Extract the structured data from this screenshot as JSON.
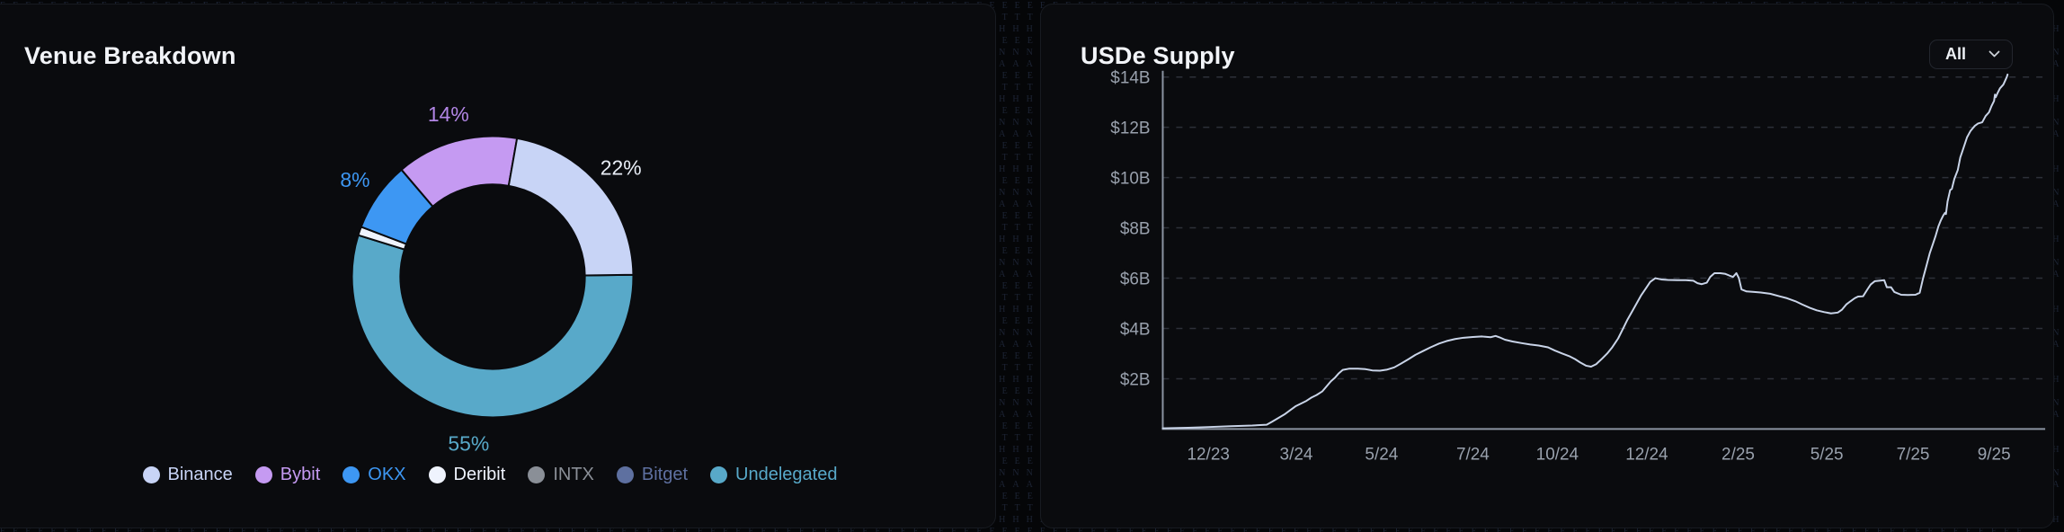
{
  "background": {
    "pattern_word": "ETHENA"
  },
  "cards": {
    "venue": {
      "title": "Venue Breakdown"
    },
    "supply": {
      "title": "USDe Supply",
      "range_selector": {
        "selected": "All",
        "icon": "chevron-down-icon"
      }
    }
  },
  "chart_data": [
    {
      "type": "donut",
      "title": "Venue Breakdown",
      "unit": "%",
      "slices": [
        {
          "label": "Binance",
          "pct": 22,
          "color": "#c8d4f6",
          "pct_label_color": "#e9eef7"
        },
        {
          "label": "Bybit",
          "pct": 14,
          "color": "#c59af2",
          "pct_label_color": "#b286e5"
        },
        {
          "label": "OKX",
          "pct": 8,
          "color": "#3d97f3",
          "pct_label_color": "#3d97f3"
        },
        {
          "label": "Deribit",
          "pct": 1,
          "color": "#eff3fd",
          "pct_label_color": "#eff3fd"
        },
        {
          "label": "INTX",
          "pct": 0,
          "color": "#8a8f97",
          "pct_label_color": "#8a8f97"
        },
        {
          "label": "Bitget",
          "pct": 0,
          "color": "#5e70a0",
          "pct_label_color": "#5e70a0"
        },
        {
          "label": "Undelegated",
          "pct": 55,
          "color": "#58a9c9",
          "pct_label_color": "#58a9c9"
        }
      ],
      "start_angle_deg": 10,
      "direction": "counterclockwise",
      "inner_radius_ratio": 0.655,
      "legend_position": "bottom",
      "pct_label_min": 5
    },
    {
      "type": "line",
      "title": "USDe Supply",
      "ylim": [
        0,
        14.3
      ],
      "grid": "dashed-horizontal",
      "legend_position": "none",
      "line_color": "#c9d4e8",
      "axis_color": "#8b93a1",
      "tick_label_color": "#99a1ad",
      "y_ticks": [
        {
          "label": "$2B",
          "value": 2
        },
        {
          "label": "$4B",
          "value": 4
        },
        {
          "label": "$6B",
          "value": 6
        },
        {
          "label": "$8B",
          "value": 8
        },
        {
          "label": "$10B",
          "value": 10
        },
        {
          "label": "$12B",
          "value": 12
        },
        {
          "label": "$14B",
          "value": 14
        }
      ],
      "x_ticks": [
        {
          "label": "12/23",
          "f": 0.054
        },
        {
          "label": "3/24",
          "f": 0.158
        },
        {
          "label": "5/24",
          "f": 0.259
        },
        {
          "label": "7/24",
          "f": 0.367
        },
        {
          "label": "10/24",
          "f": 0.467
        },
        {
          "label": "12/24",
          "f": 0.573
        },
        {
          "label": "2/25",
          "f": 0.681
        },
        {
          "label": "5/25",
          "f": 0.786
        },
        {
          "label": "7/25",
          "f": 0.888
        },
        {
          "label": "9/25",
          "f": 0.984
        }
      ],
      "points": [
        [
          0.0,
          0.03
        ],
        [
          0.03,
          0.05
        ],
        [
          0.054,
          0.08
        ],
        [
          0.081,
          0.11
        ],
        [
          0.106,
          0.14
        ],
        [
          0.123,
          0.17
        ],
        [
          0.129,
          0.28
        ],
        [
          0.136,
          0.42
        ],
        [
          0.144,
          0.58
        ],
        [
          0.151,
          0.75
        ],
        [
          0.157,
          0.9
        ],
        [
          0.163,
          1.0
        ],
        [
          0.17,
          1.12
        ],
        [
          0.176,
          1.25
        ],
        [
          0.182,
          1.35
        ],
        [
          0.189,
          1.5
        ],
        [
          0.194,
          1.7
        ],
        [
          0.199,
          1.9
        ],
        [
          0.204,
          2.05
        ],
        [
          0.208,
          2.2
        ],
        [
          0.213,
          2.35
        ],
        [
          0.221,
          2.4
        ],
        [
          0.231,
          2.4
        ],
        [
          0.24,
          2.38
        ],
        [
          0.248,
          2.33
        ],
        [
          0.257,
          2.32
        ],
        [
          0.265,
          2.36
        ],
        [
          0.274,
          2.45
        ],
        [
          0.282,
          2.6
        ],
        [
          0.291,
          2.78
        ],
        [
          0.299,
          2.95
        ],
        [
          0.308,
          3.1
        ],
        [
          0.317,
          3.25
        ],
        [
          0.327,
          3.4
        ],
        [
          0.336,
          3.5
        ],
        [
          0.346,
          3.58
        ],
        [
          0.356,
          3.63
        ],
        [
          0.367,
          3.66
        ],
        [
          0.378,
          3.68
        ],
        [
          0.388,
          3.65
        ],
        [
          0.394,
          3.7
        ],
        [
          0.399,
          3.64
        ],
        [
          0.405,
          3.55
        ],
        [
          0.414,
          3.48
        ],
        [
          0.424,
          3.42
        ],
        [
          0.435,
          3.36
        ],
        [
          0.445,
          3.32
        ],
        [
          0.456,
          3.25
        ],
        [
          0.464,
          3.12
        ],
        [
          0.473,
          3.0
        ],
        [
          0.481,
          2.9
        ],
        [
          0.488,
          2.78
        ],
        [
          0.494,
          2.65
        ],
        [
          0.501,
          2.52
        ],
        [
          0.507,
          2.48
        ],
        [
          0.513,
          2.58
        ],
        [
          0.52,
          2.8
        ],
        [
          0.526,
          3.0
        ],
        [
          0.532,
          3.25
        ],
        [
          0.539,
          3.6
        ],
        [
          0.545,
          4.0
        ],
        [
          0.55,
          4.35
        ],
        [
          0.556,
          4.7
        ],
        [
          0.561,
          5.0
        ],
        [
          0.566,
          5.3
        ],
        [
          0.572,
          5.6
        ],
        [
          0.577,
          5.85
        ],
        [
          0.583,
          6.0
        ],
        [
          0.59,
          5.95
        ],
        [
          0.598,
          5.93
        ],
        [
          0.609,
          5.92
        ],
        [
          0.619,
          5.92
        ],
        [
          0.628,
          5.9
        ],
        [
          0.633,
          5.8
        ],
        [
          0.638,
          5.76
        ],
        [
          0.644,
          5.82
        ],
        [
          0.648,
          6.05
        ],
        [
          0.653,
          6.2
        ],
        [
          0.66,
          6.2
        ],
        [
          0.666,
          6.17
        ],
        [
          0.671,
          6.1
        ],
        [
          0.675,
          6.05
        ],
        [
          0.679,
          6.2
        ],
        [
          0.682,
          6.0
        ],
        [
          0.685,
          5.55
        ],
        [
          0.691,
          5.47
        ],
        [
          0.7,
          5.45
        ],
        [
          0.708,
          5.43
        ],
        [
          0.719,
          5.38
        ],
        [
          0.73,
          5.28
        ],
        [
          0.739,
          5.2
        ],
        [
          0.749,
          5.08
        ],
        [
          0.757,
          4.95
        ],
        [
          0.766,
          4.82
        ],
        [
          0.774,
          4.72
        ],
        [
          0.783,
          4.65
        ],
        [
          0.791,
          4.6
        ],
        [
          0.799,
          4.63
        ],
        [
          0.804,
          4.75
        ],
        [
          0.809,
          4.95
        ],
        [
          0.814,
          5.08
        ],
        [
          0.819,
          5.2
        ],
        [
          0.823,
          5.27
        ],
        [
          0.829,
          5.28
        ],
        [
          0.834,
          5.55
        ],
        [
          0.838,
          5.75
        ],
        [
          0.843,
          5.88
        ],
        [
          0.848,
          5.9
        ],
        [
          0.854,
          5.92
        ],
        [
          0.857,
          5.64
        ],
        [
          0.862,
          5.64
        ],
        [
          0.866,
          5.45
        ],
        [
          0.874,
          5.34
        ],
        [
          0.882,
          5.33
        ],
        [
          0.891,
          5.34
        ],
        [
          0.896,
          5.42
        ],
        [
          0.9,
          6.0
        ],
        [
          0.904,
          6.5
        ],
        [
          0.908,
          7.0
        ],
        [
          0.912,
          7.4
        ],
        [
          0.915,
          7.7
        ],
        [
          0.918,
          8.05
        ],
        [
          0.921,
          8.3
        ],
        [
          0.924,
          8.5
        ],
        [
          0.926,
          8.6
        ],
        [
          0.927,
          8.55
        ],
        [
          0.929,
          9.05
        ],
        [
          0.932,
          9.5
        ],
        [
          0.934,
          9.55
        ],
        [
          0.937,
          9.95
        ],
        [
          0.941,
          10.3
        ],
        [
          0.944,
          10.8
        ],
        [
          0.946,
          11.0
        ],
        [
          0.949,
          11.3
        ],
        [
          0.952,
          11.6
        ],
        [
          0.956,
          11.85
        ],
        [
          0.961,
          12.05
        ],
        [
          0.965,
          12.15
        ],
        [
          0.97,
          12.2
        ],
        [
          0.974,
          12.45
        ],
        [
          0.978,
          12.6
        ],
        [
          0.981,
          12.85
        ],
        [
          0.984,
          13.05
        ],
        [
          0.985,
          13.3
        ],
        [
          0.986,
          13.2
        ],
        [
          0.988,
          13.35
        ],
        [
          0.991,
          13.55
        ],
        [
          0.995,
          13.7
        ],
        [
          0.997,
          13.85
        ],
        [
          0.999,
          14.0
        ],
        [
          1.0,
          14.1
        ]
      ]
    }
  ]
}
